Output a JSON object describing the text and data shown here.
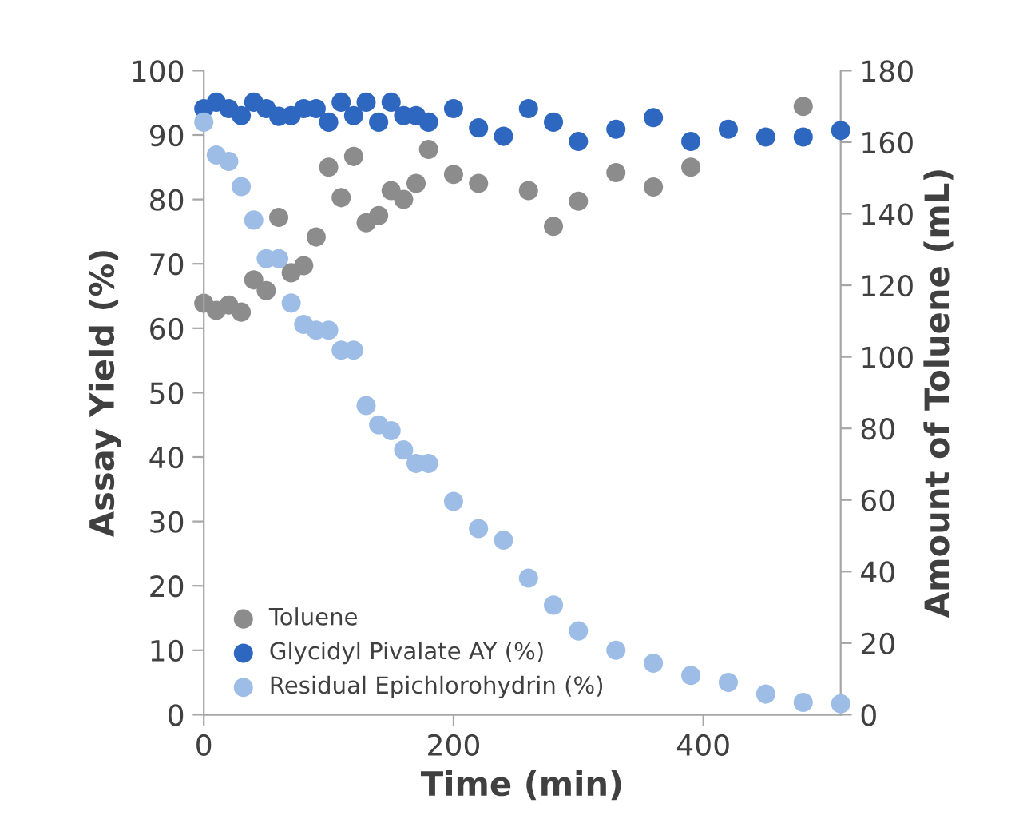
{
  "chart_data": {
    "type": "scatter",
    "xlabel": "Time (min)",
    "ylabel": "Assay Yield (%)",
    "y2label": "Amount of Toluene (mL)",
    "xlim": [
      0,
      510
    ],
    "xticks": [
      0,
      200,
      400
    ],
    "ylim": [
      0,
      100
    ],
    "yticks": [
      0,
      10,
      20,
      30,
      40,
      50,
      60,
      70,
      80,
      90,
      100
    ],
    "y2lim": [
      0,
      180
    ],
    "y2ticks": [
      0,
      20,
      40,
      60,
      80,
      100,
      120,
      140,
      160,
      180
    ],
    "grid": false,
    "legend": "bottom left",
    "marker": "circle",
    "series": [
      {
        "name": "Toluene",
        "color": "#8c8c8c",
        "axis": "y2",
        "x": [
          0,
          10,
          20,
          30,
          40,
          50,
          60,
          70,
          80,
          90,
          100,
          110,
          120,
          130,
          140,
          150,
          160,
          170,
          180,
          200,
          220,
          240,
          260,
          280,
          300,
          330,
          360,
          390,
          480
        ],
        "values": [
          115,
          113,
          114.5,
          112.5,
          121.5,
          118.5,
          139,
          123.5,
          125.5,
          133.5,
          153,
          144.5,
          156,
          137.5,
          139.5,
          146.5,
          144,
          148.5,
          158,
          151,
          148.5,
          null,
          146.5,
          136.5,
          143.5,
          151.5,
          147.5,
          153,
          170
        ]
      },
      {
        "name": "Glycidyl Pivalate AY (%)",
        "color": "#2e67c0",
        "x": [
          0,
          10,
          20,
          30,
          40,
          50,
          60,
          70,
          80,
          90,
          100,
          110,
          120,
          130,
          140,
          150,
          160,
          170,
          180,
          200,
          220,
          240,
          260,
          280,
          300,
          330,
          360,
          390,
          420,
          450,
          480,
          510
        ],
        "values": [
          94.1,
          95.1,
          94.1,
          93,
          95.1,
          94.1,
          92.9,
          93,
          94.1,
          94.1,
          92,
          95.1,
          93,
          95.1,
          92,
          95.1,
          93,
          93,
          92,
          94.1,
          91.1,
          89.8,
          94.1,
          92,
          89,
          90.9,
          92.7,
          89,
          90.9,
          89.7,
          89.7,
          90.7
        ]
      },
      {
        "name": "Residual Epichlorohydrin (%)",
        "color": "#9ebde6",
        "x": [
          0,
          10,
          20,
          30,
          40,
          50,
          60,
          70,
          80,
          90,
          100,
          110,
          120,
          130,
          140,
          150,
          160,
          170,
          180,
          200,
          220,
          240,
          260,
          280,
          300,
          330,
          360,
          390,
          420,
          450,
          480,
          510
        ],
        "values": [
          92,
          86.9,
          85.9,
          82,
          76.8,
          70.8,
          70.8,
          63.9,
          60.6,
          59.7,
          59.7,
          56.6,
          56.6,
          48,
          45,
          44.1,
          41.1,
          39,
          39,
          33.1,
          28.9,
          27.1,
          21.2,
          17,
          13,
          10,
          8,
          6.1,
          5,
          3.2,
          1.9,
          1.7
        ]
      }
    ]
  }
}
